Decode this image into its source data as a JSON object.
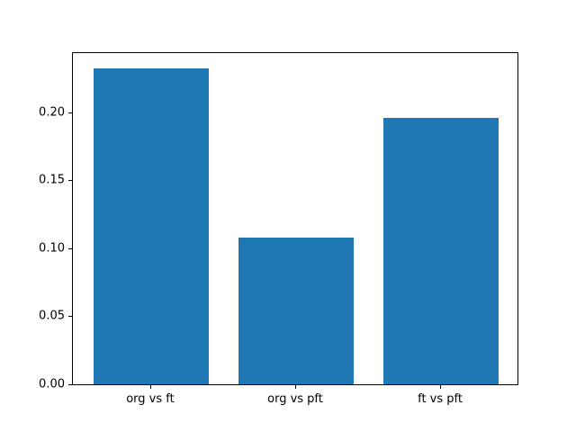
{
  "figure": {
    "background_color": "#ffffff",
    "spine_color": "#000000",
    "tick_color": "#000000"
  },
  "chart_data": {
    "type": "bar",
    "categories": [
      "org vs ft",
      "org vs pft",
      "ft vs pft"
    ],
    "values": [
      0.2325,
      0.108,
      0.196
    ],
    "title": "",
    "xlabel": "",
    "ylabel": "",
    "bar_color": "#1f77b4",
    "ylim": [
      0,
      0.2441
    ],
    "xlim": [
      -0.54,
      2.54
    ],
    "bar_width": 0.8,
    "yticks": [
      0.0,
      0.05,
      0.1,
      0.15,
      0.2
    ],
    "ytick_labels": [
      "0.00",
      "0.05",
      "0.10",
      "0.15",
      "0.20"
    ],
    "grid": false,
    "legend": null
  }
}
